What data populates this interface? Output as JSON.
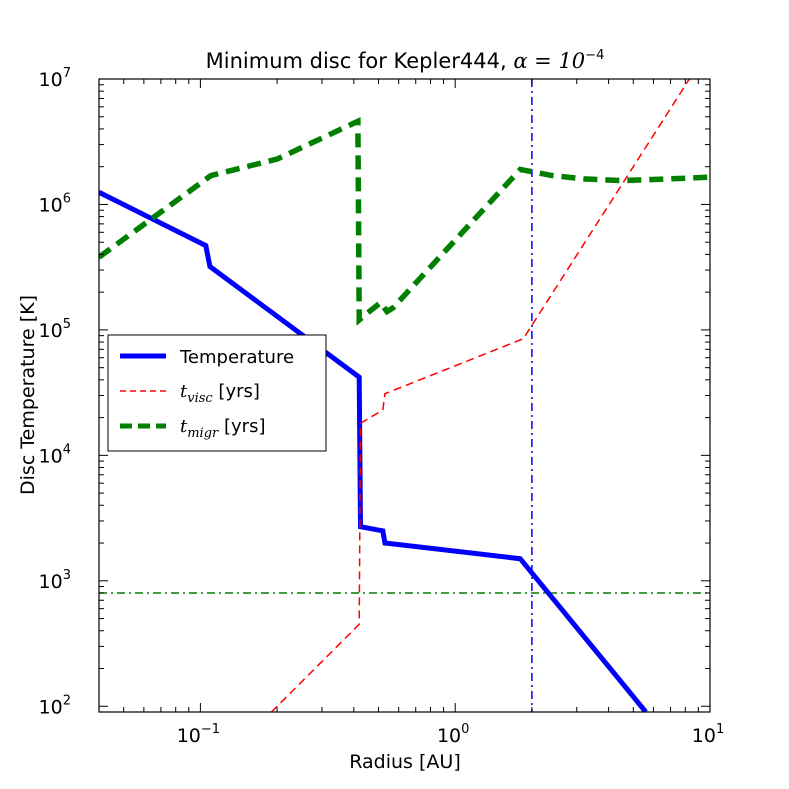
{
  "chart_data": {
    "type": "line",
    "title": "Minimum disc for Kepler444, ",
    "title_math": "α = 10",
    "title_math_exp": "−4",
    "xlabel": "Radius [AU]",
    "ylabel": "Disc Temperature [K]",
    "xscale": "log",
    "yscale": "log",
    "xlim": [
      0.04,
      10
    ],
    "ylim": [
      90,
      10000000
    ],
    "x_ticks": [
      {
        "value": 0.1,
        "base": "10",
        "exp": "−1"
      },
      {
        "value": 1,
        "base": "10",
        "exp": "0"
      },
      {
        "value": 10,
        "base": "10",
        "exp": "1"
      }
    ],
    "y_ticks": [
      {
        "value": 100,
        "base": "10",
        "exp": "2"
      },
      {
        "value": 1000,
        "base": "10",
        "exp": "3"
      },
      {
        "value": 10000,
        "base": "10",
        "exp": "4"
      },
      {
        "value": 100000,
        "base": "10",
        "exp": "5"
      },
      {
        "value": 1000000,
        "base": "10",
        "exp": "6"
      },
      {
        "value": 10000000,
        "base": "10",
        "exp": "7"
      }
    ],
    "series": [
      {
        "name": "Temperature",
        "style": "solid",
        "color": "#0000ff",
        "x": [
          0.04,
          0.105,
          0.109,
          0.42,
          0.425,
          0.52,
          0.53,
          1.8,
          5.6
        ],
        "y": [
          1250000,
          470000,
          320000,
          42000,
          2700,
          2500,
          2000,
          1500,
          90
        ]
      },
      {
        "name": "t_visc [yrs]",
        "style": "dashed",
        "color": "#ff0000",
        "x": [
          0.19,
          0.42,
          0.425,
          0.52,
          0.53,
          1.85,
          8.3
        ],
        "y": [
          90,
          450,
          18000,
          23000,
          31000,
          85000,
          10000000
        ]
      },
      {
        "name": "t_migr [yrs]",
        "style": "thick-dashed",
        "color": "#007f00",
        "x": [
          0.04,
          0.11,
          0.2,
          0.415,
          0.42,
          0.46,
          0.51,
          0.54,
          0.57,
          1.8,
          2.4,
          3.2,
          4.5,
          7,
          10
        ],
        "y": [
          380000,
          1700000,
          2300000,
          4600000,
          120000,
          140000,
          165000,
          140000,
          150000,
          1900000,
          1700000,
          1600000,
          1550000,
          1600000,
          1650000
        ]
      }
    ],
    "reference_lines": [
      {
        "orientation": "vertical",
        "value": 2.0,
        "color": "#0000ff",
        "style": "dash-dot"
      },
      {
        "orientation": "horizontal",
        "value": 800,
        "color": "#007f00",
        "style": "dash-dot"
      }
    ],
    "legend": {
      "placement": "center-left",
      "entries": [
        {
          "label": "Temperature"
        },
        {
          "label_math": "t",
          "label_sub": "visc",
          "label_rest": " [yrs]"
        },
        {
          "label_math": "t",
          "label_sub": "migr",
          "label_rest": " [yrs]"
        }
      ]
    }
  }
}
